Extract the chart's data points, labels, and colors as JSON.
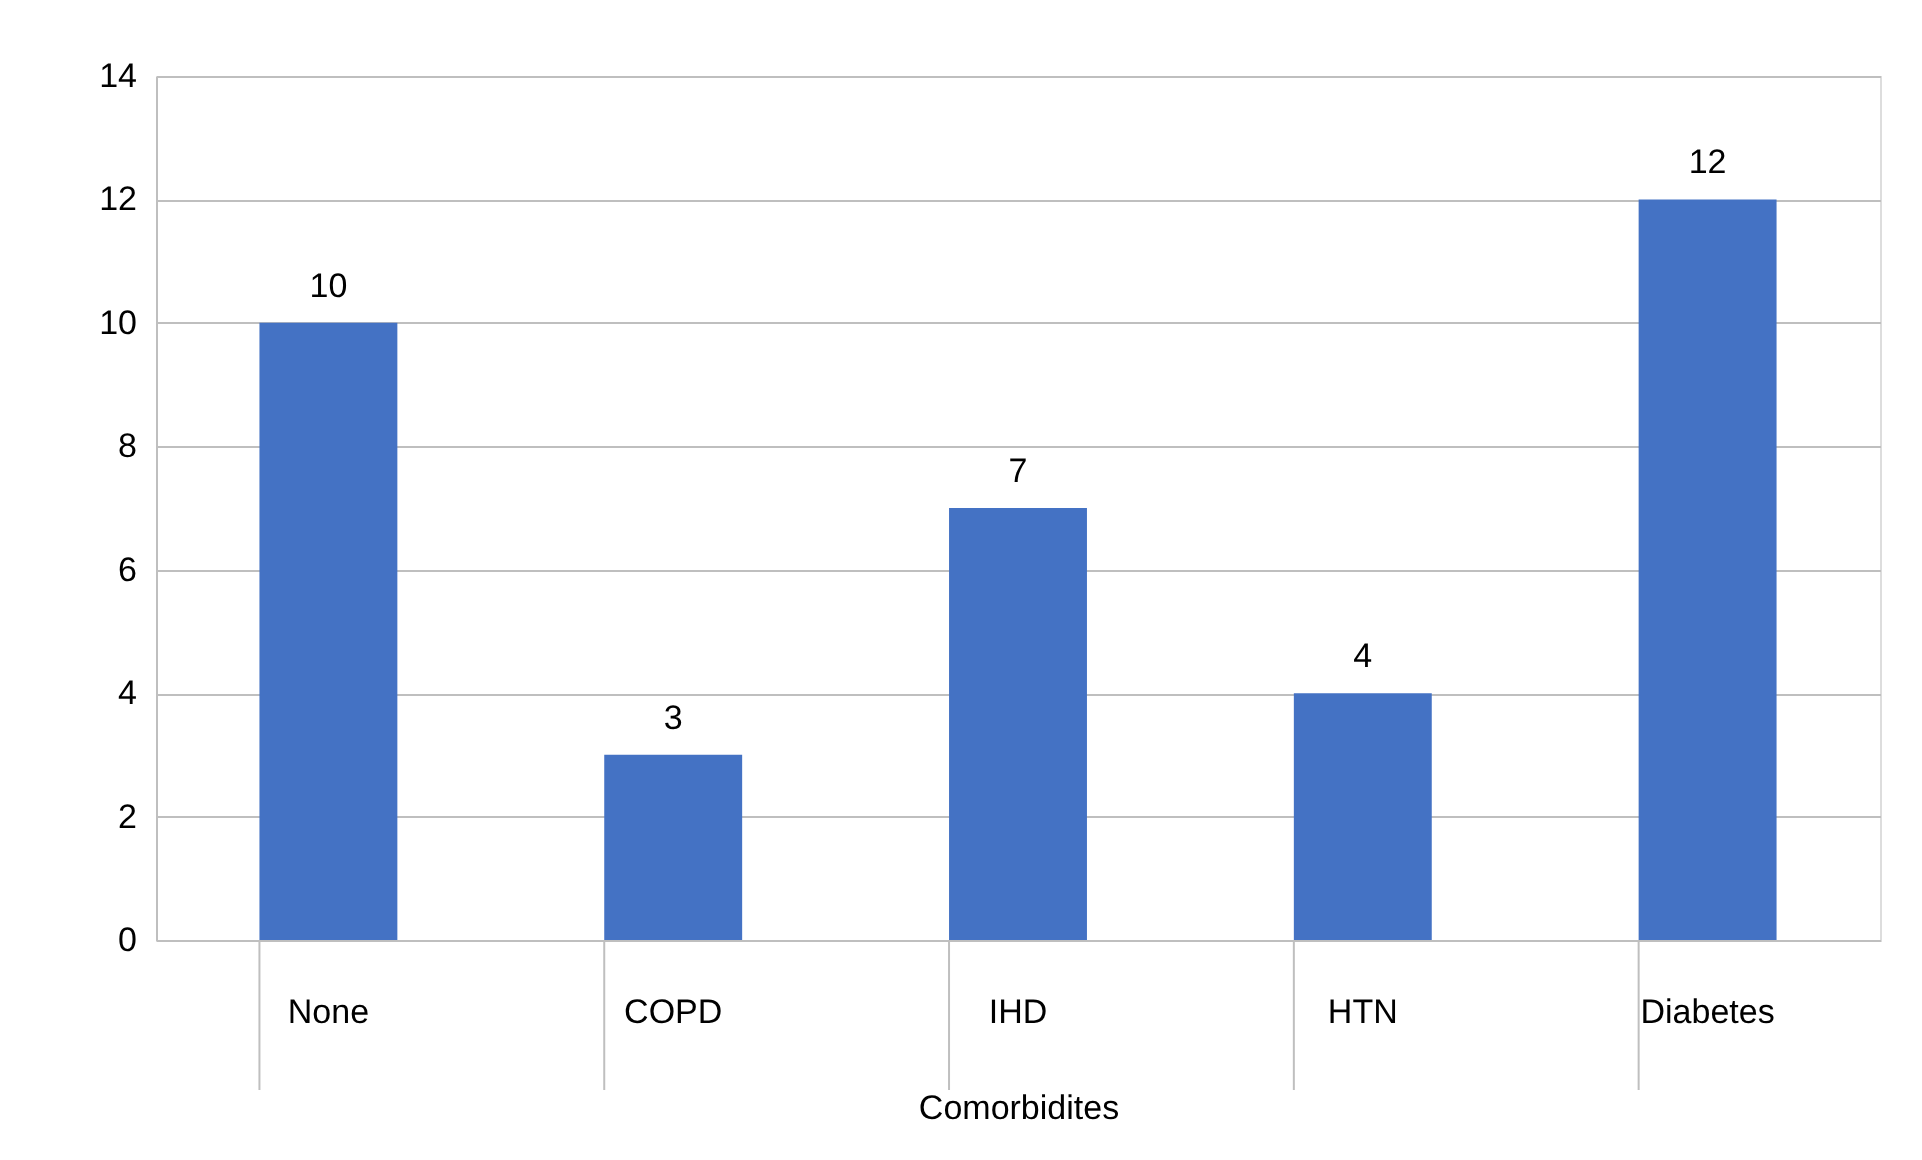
{
  "chart_data": {
    "type": "bar",
    "xlabel": "Comorbidites",
    "categories": [
      "None",
      "COPD",
      "IHD",
      "HTN",
      "Diabetes"
    ],
    "values": [
      10,
      3,
      7,
      4,
      12
    ],
    "color": "#4472c4",
    "ylim": [
      0,
      14
    ],
    "yticks": [
      0,
      2,
      4,
      6,
      8,
      10,
      12,
      14
    ],
    "grid": "y",
    "data_labels": true
  }
}
